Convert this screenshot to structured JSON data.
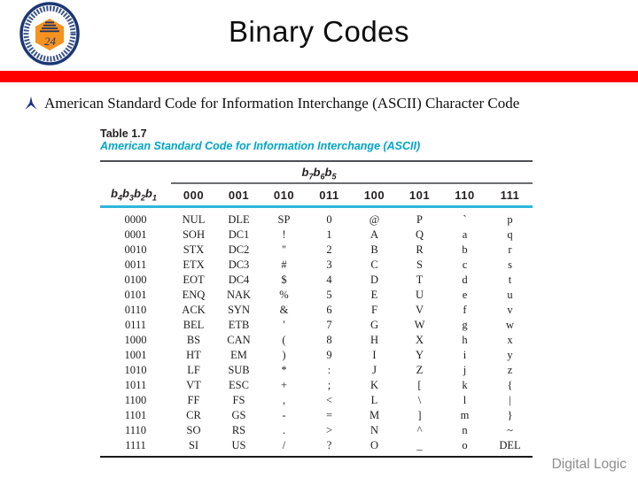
{
  "slide": {
    "title": "Binary Codes",
    "bullet_text": "American Standard Code for Information Interchange (ASCII) Character Code",
    "footer": "Digital Logic"
  },
  "table": {
    "label": "Table 1.7",
    "caption": "American Standard Code for Information Interchange (ASCII)",
    "group_header": {
      "base": "b",
      "subscripts": [
        "7",
        "6",
        "5"
      ]
    },
    "row_header": {
      "base": "b",
      "subscripts": [
        "4",
        "3",
        "2",
        "1"
      ]
    },
    "col_headers": [
      "000",
      "001",
      "010",
      "011",
      "100",
      "101",
      "110",
      "111"
    ],
    "rows": [
      {
        "bits": "0000",
        "cells": [
          "NUL",
          "DLE",
          "SP",
          "0",
          "@",
          "P",
          "`",
          "p"
        ]
      },
      {
        "bits": "0001",
        "cells": [
          "SOH",
          "DC1",
          "!",
          "1",
          "A",
          "Q",
          "a",
          "q"
        ]
      },
      {
        "bits": "0010",
        "cells": [
          "STX",
          "DC2",
          "\"",
          "2",
          "B",
          "R",
          "b",
          "r"
        ]
      },
      {
        "bits": "0011",
        "cells": [
          "ETX",
          "DC3",
          "#",
          "3",
          "C",
          "S",
          "c",
          "s"
        ]
      },
      {
        "bits": "0100",
        "cells": [
          "EOT",
          "DC4",
          "$",
          "4",
          "D",
          "T",
          "d",
          "t"
        ]
      },
      {
        "bits": "0101",
        "cells": [
          "ENQ",
          "NAK",
          "%",
          "5",
          "E",
          "U",
          "e",
          "u"
        ]
      },
      {
        "bits": "0110",
        "cells": [
          "ACK",
          "SYN",
          "&",
          "6",
          "F",
          "V",
          "f",
          "v"
        ]
      },
      {
        "bits": "0111",
        "cells": [
          "BEL",
          "ETB",
          "'",
          "7",
          "G",
          "W",
          "g",
          "w"
        ]
      },
      {
        "bits": "1000",
        "cells": [
          "BS",
          "CAN",
          "(",
          "8",
          "H",
          "X",
          "h",
          "x"
        ]
      },
      {
        "bits": "1001",
        "cells": [
          "HT",
          "EM",
          ")",
          "9",
          "I",
          "Y",
          "i",
          "y"
        ]
      },
      {
        "bits": "1010",
        "cells": [
          "LF",
          "SUB",
          "*",
          ":",
          "J",
          "Z",
          "j",
          "z"
        ]
      },
      {
        "bits": "1011",
        "cells": [
          "VT",
          "ESC",
          "+",
          ";",
          "K",
          "[",
          "k",
          "{"
        ]
      },
      {
        "bits": "1100",
        "cells": [
          "FF",
          "FS",
          ",",
          "<",
          "L",
          "\\",
          "l",
          "|"
        ]
      },
      {
        "bits": "1101",
        "cells": [
          "CR",
          "GS",
          "-",
          "=",
          "M",
          "]",
          "m",
          "}"
        ]
      },
      {
        "bits": "1110",
        "cells": [
          "SO",
          "RS",
          ".",
          ">",
          "N",
          "^",
          "n",
          "~"
        ]
      },
      {
        "bits": "1111",
        "cells": [
          "SI",
          "US",
          "/",
          "?",
          "O",
          "_",
          "o",
          "DEL"
        ]
      }
    ]
  },
  "icons": {
    "logo": "university-emblem",
    "bullet": "caltrop-star-bullet"
  },
  "colors": {
    "accent_red": "#FE0000",
    "caption_teal": "#00A5CB",
    "header_rule_cyan": "#2FB6DC",
    "footer_gray": "#8E8E8E",
    "logo_navy": "#1C3775",
    "logo_orange": "#F6921E",
    "bullet_navy": "#1C2F8C"
  }
}
